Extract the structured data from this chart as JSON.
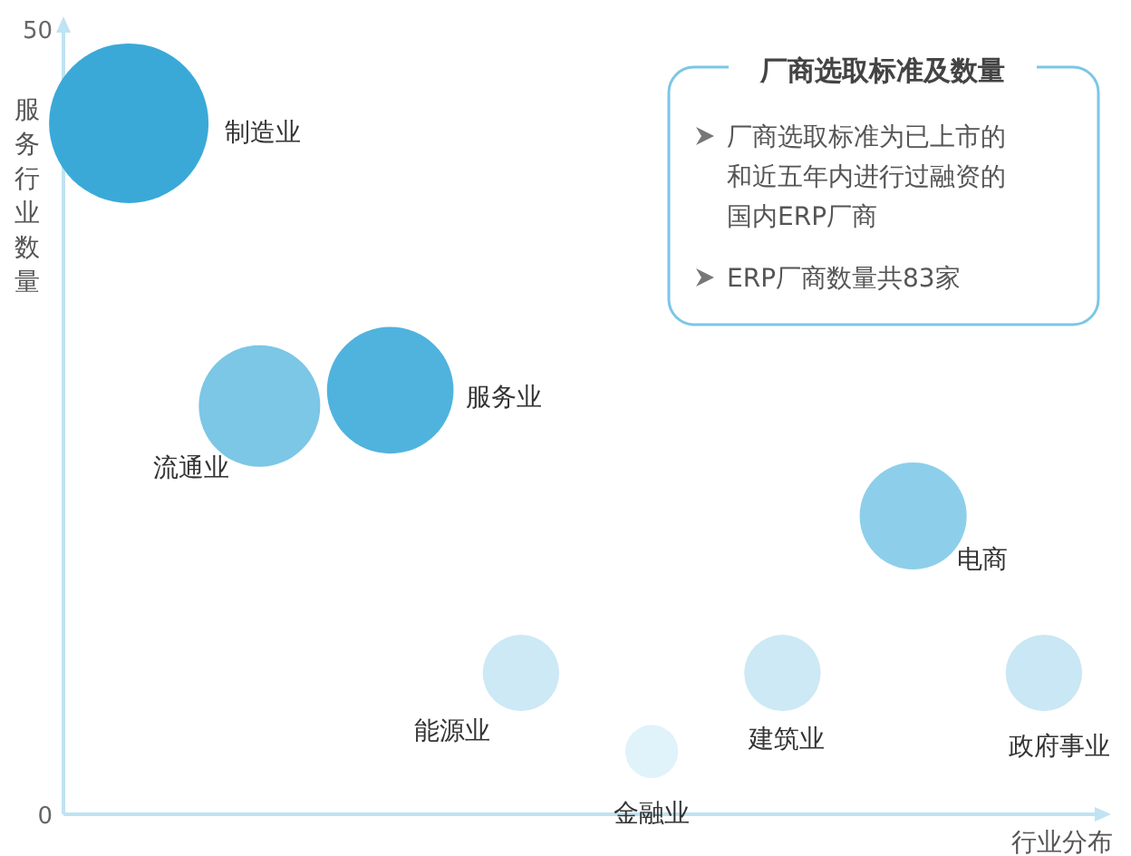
{
  "chart_data": {
    "type": "bubble",
    "ylabel": "服务行业数量",
    "xlabel": "行业分布",
    "ylim": [
      0,
      50
    ],
    "yticks": [
      0,
      50
    ],
    "grid": false,
    "categories": [
      null,
      null,
      null,
      null,
      null,
      null,
      null,
      null
    ],
    "series": [
      {
        "name": "制造业",
        "color": "#3aa9d8",
        "values": [
          44,
          null,
          null,
          null,
          null,
          null,
          null,
          null
        ],
        "sizes": [
          1,
          null,
          null,
          null,
          null,
          null,
          null,
          null
        ]
      },
      {
        "name": "流通业",
        "color": "#7cc6e6",
        "values": [
          null,
          26,
          null,
          null,
          null,
          null,
          null,
          null
        ],
        "sizes": [
          null,
          0.58,
          null,
          null,
          null,
          null,
          null,
          null
        ]
      },
      {
        "name": "服务业",
        "color": "#4fb3de",
        "values": [
          null,
          null,
          27,
          null,
          null,
          null,
          null,
          null
        ],
        "sizes": [
          null,
          null,
          0.63,
          null,
          null,
          null,
          null,
          null
        ]
      },
      {
        "name": "能源业",
        "color": "#cde9f5",
        "values": [
          null,
          null,
          null,
          9,
          null,
          null,
          null,
          null
        ],
        "sizes": [
          null,
          null,
          null,
          0.23,
          null,
          null,
          null,
          null
        ]
      },
      {
        "name": "金融业",
        "color": "#e0f2fa",
        "values": [
          null,
          null,
          null,
          null,
          4,
          null,
          null,
          null
        ],
        "sizes": [
          null,
          null,
          null,
          null,
          0.11,
          null,
          null,
          null
        ]
      },
      {
        "name": "建筑业",
        "color": "#cde9f5",
        "values": [
          null,
          null,
          null,
          null,
          null,
          9,
          null,
          null
        ],
        "sizes": [
          null,
          null,
          null,
          null,
          null,
          0.23,
          null,
          null
        ]
      },
      {
        "name": "电商",
        "color": "#8dcfea",
        "values": [
          null,
          null,
          null,
          null,
          null,
          null,
          19,
          null
        ],
        "sizes": [
          null,
          null,
          null,
          null,
          null,
          null,
          0.45,
          null
        ]
      },
      {
        "name": "政府事业",
        "color": "#c9e7f4",
        "values": [
          null,
          null,
          null,
          null,
          null,
          null,
          null,
          9
        ],
        "sizes": [
          null,
          null,
          null,
          null,
          null,
          null,
          null,
          0.23
        ]
      }
    ],
    "annotations": [
      "厂商选取标准及数量",
      "厂商选取标准为已上市的和近五年内进行过融资的国内ERP厂商",
      "ERP厂商数量共83家"
    ]
  }
}
